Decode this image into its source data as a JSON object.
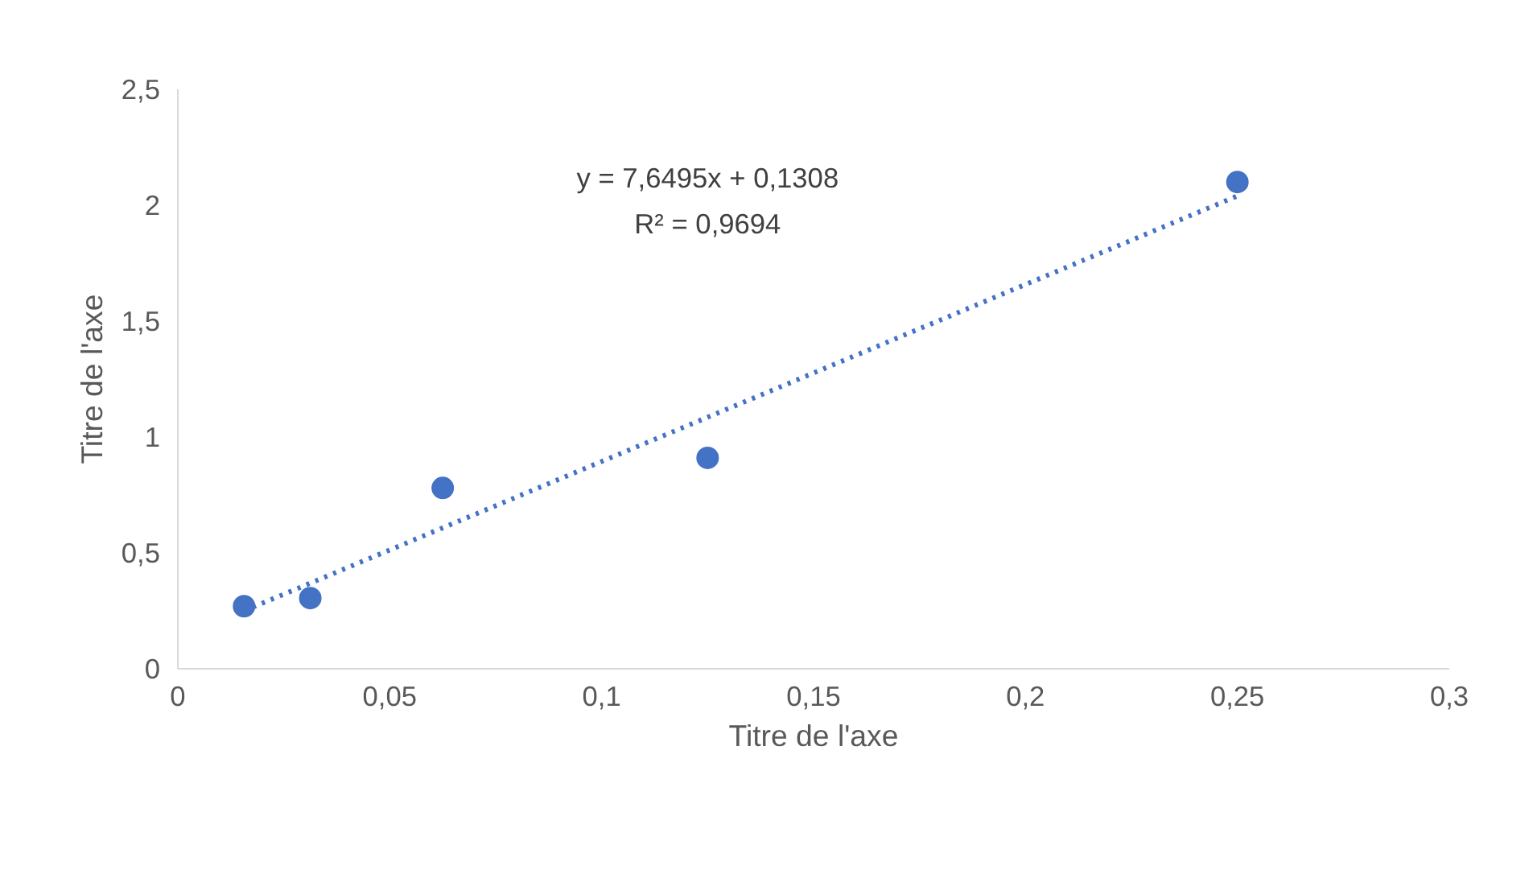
{
  "chart_data": {
    "type": "scatter",
    "xlabel": "Titre de l'axe",
    "ylabel": "Titre de l'axe",
    "annotations": [
      "y = 7,6495x + 0,1308",
      "R² = 0,9694"
    ],
    "xlim": [
      0,
      0.3
    ],
    "ylim": [
      0,
      2.5
    ],
    "xticks": [
      0,
      {
        "value": 0.05,
        "label": "0,05"
      },
      {
        "value": 0.1,
        "label": "0,1"
      },
      {
        "value": 0.15,
        "label": "0,15"
      },
      {
        "value": 0.2,
        "label": "0,2"
      },
      {
        "value": 0.25,
        "label": "0,25"
      },
      {
        "value": 0.3,
        "label": "0,3"
      }
    ],
    "yticks": [
      0,
      {
        "value": 0.5,
        "label": "0,5"
      },
      1,
      {
        "value": 1.5,
        "label": "1,5"
      },
      2,
      {
        "value": 2.5,
        "label": "2,5"
      }
    ],
    "grid": false,
    "series": [
      {
        "color": "#4472c4",
        "marker": "circle",
        "x": [
          0.015625,
          0.03125,
          0.0625,
          0.125,
          0.25
        ],
        "values": [
          0.27,
          0.305,
          0.78,
          0.91,
          2.1
        ]
      },
      {
        "type": "line",
        "color": "#4472c4",
        "line_style": "dotted",
        "marker": "none",
        "x": [
          0.015625,
          0.25
        ],
        "values": [
          0.25,
          2.04
        ]
      }
    ]
  }
}
